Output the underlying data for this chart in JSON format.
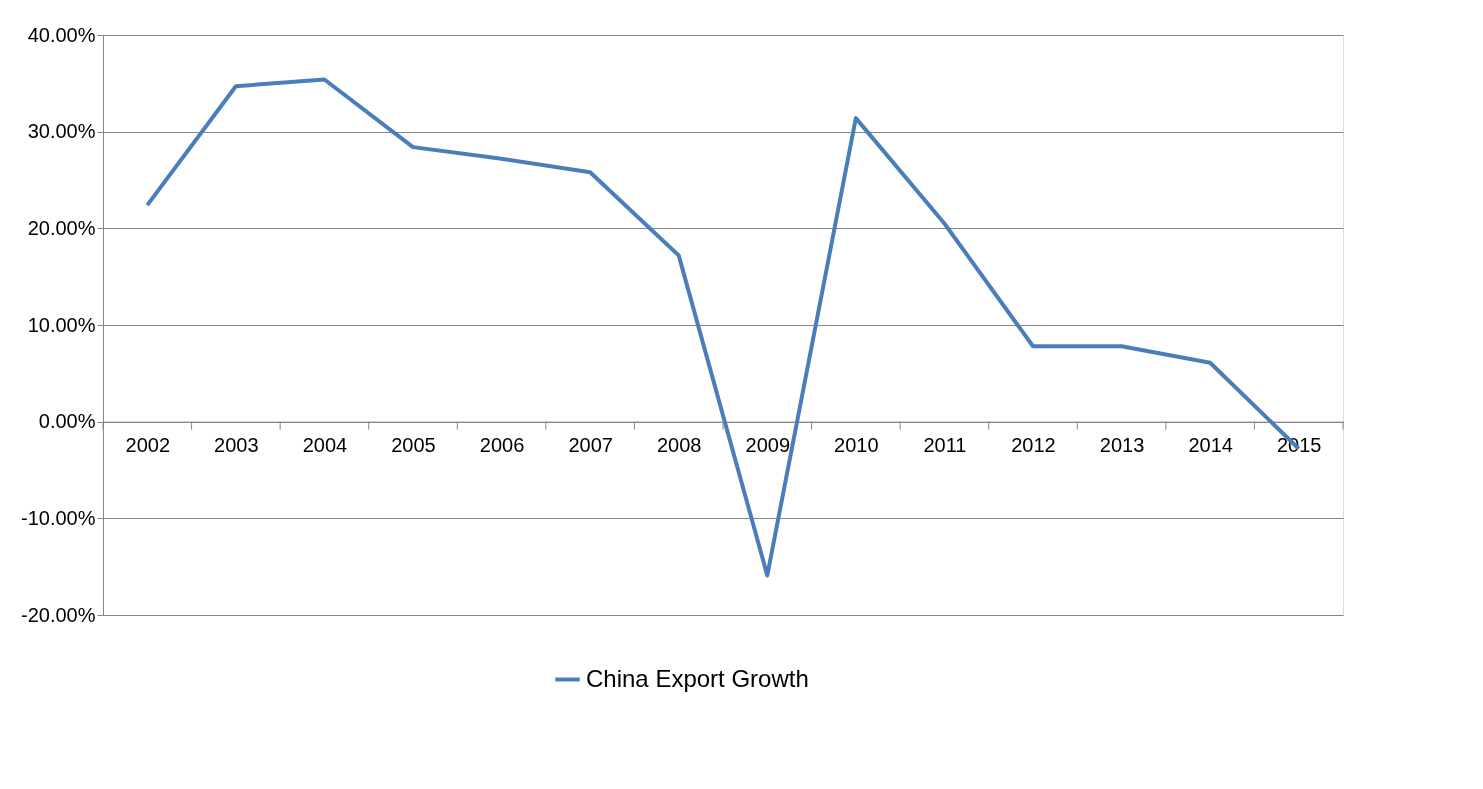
{
  "chart_data": {
    "type": "line",
    "categories": [
      "2002",
      "2003",
      "2004",
      "2005",
      "2006",
      "2007",
      "2008",
      "2009",
      "2010",
      "2011",
      "2012",
      "2013",
      "2014",
      "2015"
    ],
    "series": [
      {
        "name": "China Export Growth",
        "color": "#4a7ebb",
        "values": [
          22.4,
          34.7,
          35.4,
          28.4,
          27.2,
          25.8,
          17.2,
          -15.9,
          31.4,
          20.5,
          7.8,
          7.8,
          6.1,
          -2.8
        ]
      }
    ],
    "ylim": [
      -20,
      40
    ],
    "yticks": [
      {
        "value": -20,
        "label": "-20.00%"
      },
      {
        "value": -10,
        "label": "-10.00%"
      },
      {
        "value": 0,
        "label": "0.00%"
      },
      {
        "value": 10,
        "label": "10.00%"
      },
      {
        "value": 20,
        "label": "20.00%"
      },
      {
        "value": 30,
        "label": "30.00%"
      },
      {
        "value": 40,
        "label": "40.00%"
      }
    ],
    "grid": "y",
    "legend": "bottom",
    "marker": "none",
    "line_style": "solid"
  }
}
